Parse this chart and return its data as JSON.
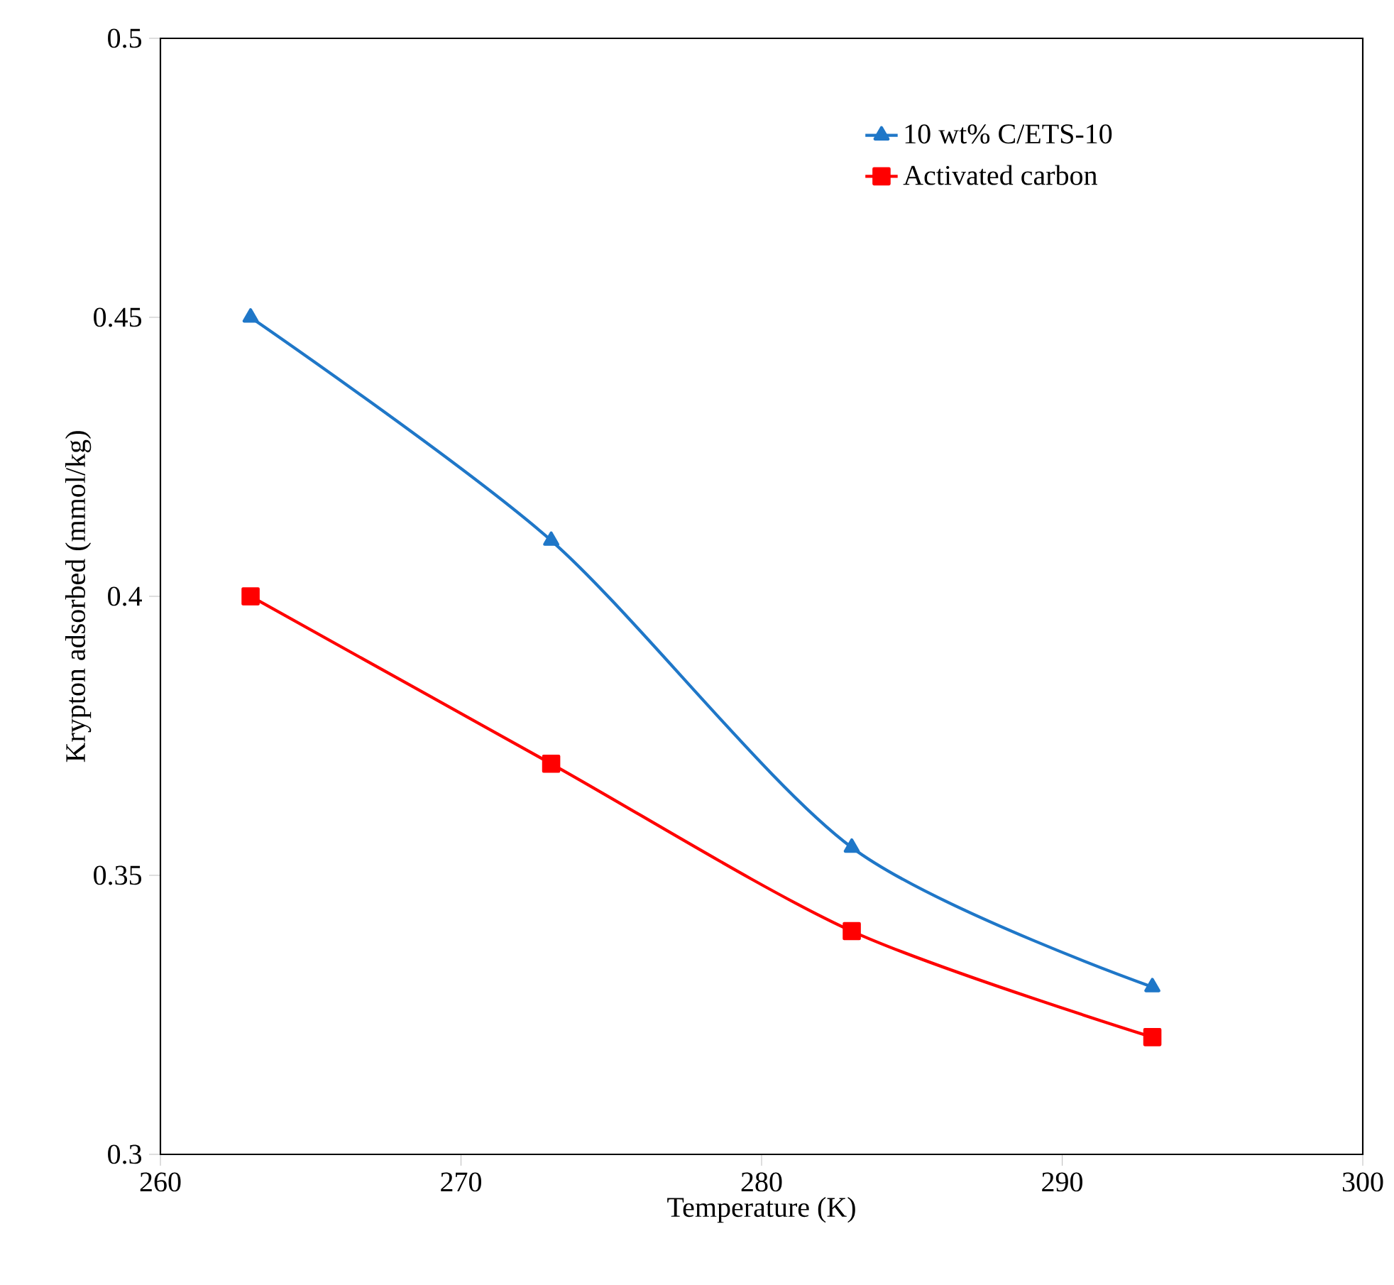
{
  "chart_data": {
    "type": "line",
    "xlabel": "Temperature  (K)",
    "ylabel": "Krypton adsorbed (mmol/kg)",
    "x": [
      263,
      273,
      283,
      293
    ],
    "series": [
      {
        "name": "10 wt% C/ETS-10",
        "color": "#1f77c8",
        "marker": "triangle",
        "values": [
          0.45,
          0.41,
          0.355,
          0.33
        ]
      },
      {
        "name": "Activated carbon",
        "color": "#ff0000",
        "marker": "square",
        "values": [
          0.4,
          0.37,
          0.34,
          0.321
        ]
      }
    ],
    "xlim": [
      260,
      300
    ],
    "xticks": [
      260,
      270,
      280,
      290,
      300
    ],
    "ylim": [
      0.3,
      0.5
    ],
    "yticks": [
      0.3,
      0.35,
      0.4,
      0.45,
      0.5
    ],
    "grid": false,
    "legend": "top right",
    "line_style": "solid"
  }
}
